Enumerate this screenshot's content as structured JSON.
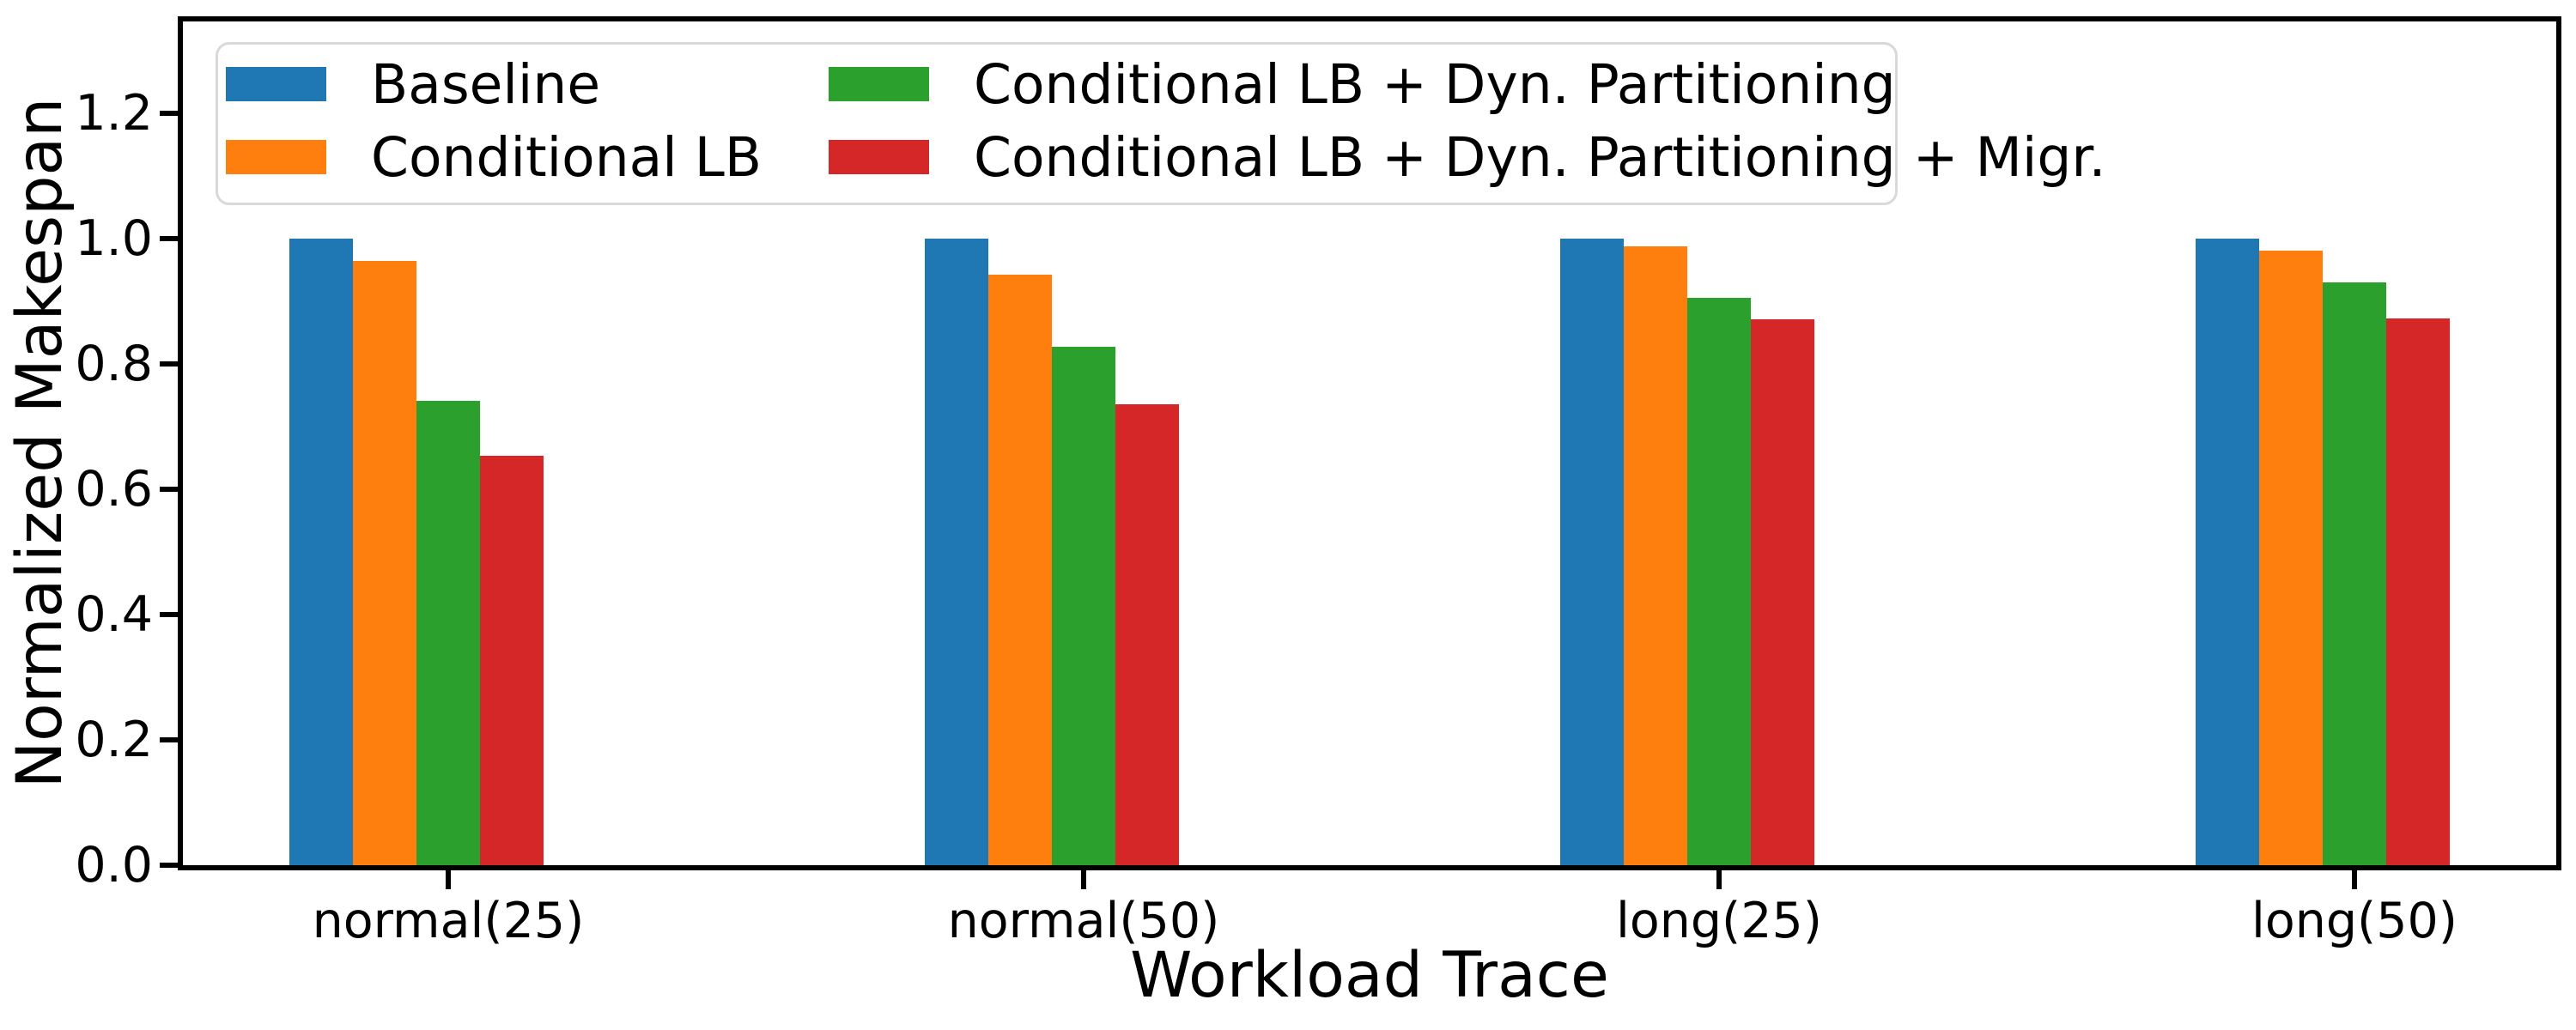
{
  "chart_data": {
    "type": "bar",
    "title": "",
    "xlabel": "Workload Trace",
    "ylabel": "Normalized Makespan",
    "categories": [
      "normal(25)",
      "normal(50)",
      "long(25)",
      "long(50)"
    ],
    "series": [
      {
        "name": "Baseline",
        "color": "#1f77b4",
        "values": [
          1.0,
          1.0,
          1.0,
          1.0
        ]
      },
      {
        "name": "Conditional LB",
        "color": "#ff7f0e",
        "values": [
          0.964,
          0.942,
          0.987,
          0.981
        ]
      },
      {
        "name": "Conditional LB + Dyn. Partitioning",
        "color": "#2ca02c",
        "values": [
          0.741,
          0.827,
          0.906,
          0.93
        ]
      },
      {
        "name": "Conditional LB + Dyn. Partitioning + Migr.",
        "color": "#d62728",
        "values": [
          0.654,
          0.735,
          0.871,
          0.873
        ]
      }
    ],
    "yticks": [
      0.0,
      0.2,
      0.4,
      0.6,
      0.8,
      1.0,
      1.2
    ],
    "ytick_labels": [
      "0.0",
      "0.2",
      "0.4",
      "0.6",
      "0.8",
      "1.0",
      "1.2"
    ],
    "ylim": [
      0,
      1.347
    ],
    "grid": false,
    "legend": {
      "position": "upper left",
      "ncol": 2,
      "frame": true
    },
    "colors": {
      "axis": "#000000",
      "background": "#ffffff",
      "legend_border": "#d9d9d9"
    }
  }
}
